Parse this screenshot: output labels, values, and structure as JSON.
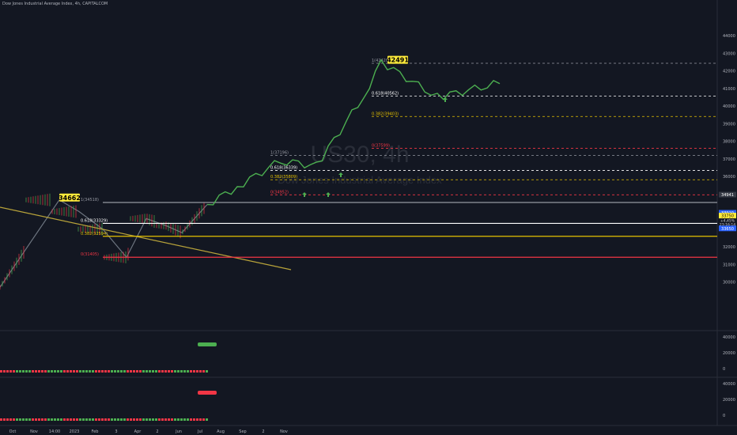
{
  "header": {
    "title": "Dow Jones Industrial Average Index, 4h, CAPITALCOM"
  },
  "watermark": {
    "symbol": "US30, 4h",
    "name": "Dow Jones Industrial Average Index"
  },
  "colors": {
    "background": "#131722",
    "price_line": "#4caf50",
    "arrow": "#4caf50",
    "fib_white": "#ffffff",
    "fib_gold": "#e6c200",
    "fib_red": "#f23645",
    "fib_grey": "#9598a1",
    "trendline": "#b8a33a",
    "label_yellow": "#ffeb3b",
    "bar_red": "#f23645",
    "bar_green": "#4caf50",
    "tag_blue": "#2962ff"
  },
  "price_axis": {
    "ticks": [
      "44000",
      "43000",
      "42000",
      "41000",
      "40000",
      "39000",
      "38000",
      "37000",
      "36000",
      "35000",
      "34000",
      "33000",
      "32000",
      "31000",
      "30000"
    ],
    "tags": [
      {
        "text": "34941",
        "style": "dark"
      },
      {
        "text": "33910",
        "style": "blue"
      },
      {
        "text": "33750",
        "style": "yellow"
      },
      {
        "text": "+4,45%",
        "style": "text"
      },
      {
        "text": "23:16:14",
        "style": "text"
      },
      {
        "text": "33650",
        "style": "blue"
      }
    ]
  },
  "time_axis": {
    "ticks": [
      "Oct",
      "Nov",
      "14:00",
      "2023",
      "Feb",
      "3",
      "Apr",
      "2",
      "Jun",
      "Jul",
      "Aug",
      "Sep",
      "2",
      "Nov"
    ]
  },
  "callouts": {
    "high_label": "42491",
    "low_label": "34662"
  },
  "chart_data": {
    "type": "line",
    "symbol": "US30",
    "timeframe": "4h",
    "history": {
      "x": [
        "Oct",
        "Nov",
        "2023",
        "Feb",
        "Mar",
        "Apr",
        "May",
        "Jun",
        "Jul"
      ],
      "y": [
        29700,
        34662,
        34000,
        33000,
        31400,
        33600,
        33200,
        32800,
        34400
      ]
    },
    "projection": {
      "x": [
        "Jul",
        "Aug",
        "Aug",
        "Sep",
        "Sep",
        "Oct",
        "Oct",
        "Nov"
      ],
      "y": [
        34400,
        35400,
        36900,
        36600,
        40562,
        42491,
        40500,
        41300
      ]
    },
    "fib_levels": [
      {
        "label": "1(34518)",
        "value": 34518,
        "color": "grey"
      },
      {
        "label": "0.618(33329)",
        "value": 33329,
        "color": "white"
      },
      {
        "label": "0.382(32594)",
        "value": 32594,
        "color": "gold"
      },
      {
        "label": "0(31405)",
        "value": 31405,
        "color": "red"
      },
      {
        "label": "1(37196)",
        "value": 37196,
        "color": "grey"
      },
      {
        "label": "0.618(36339)",
        "value": 36339,
        "color": "white"
      },
      {
        "label": "0.382(35809)",
        "value": 35809,
        "color": "gold"
      },
      {
        "label": "0(34952)",
        "value": 34952,
        "color": "red"
      },
      {
        "label": "1(42428)",
        "value": 42428,
        "color": "grey"
      },
      {
        "label": "0.618(40562)",
        "value": 40562,
        "color": "white"
      },
      {
        "label": "0.382(39403)",
        "value": 39403,
        "color": "gold"
      },
      {
        "label": "0(37599)",
        "value": 37599,
        "color": "red"
      }
    ],
    "indicator_panels": [
      {
        "axis": [
          "40000",
          "20000",
          "0"
        ],
        "badge": "green"
      },
      {
        "axis": [
          "40000",
          "20000",
          "0"
        ],
        "badge": "red"
      }
    ]
  }
}
